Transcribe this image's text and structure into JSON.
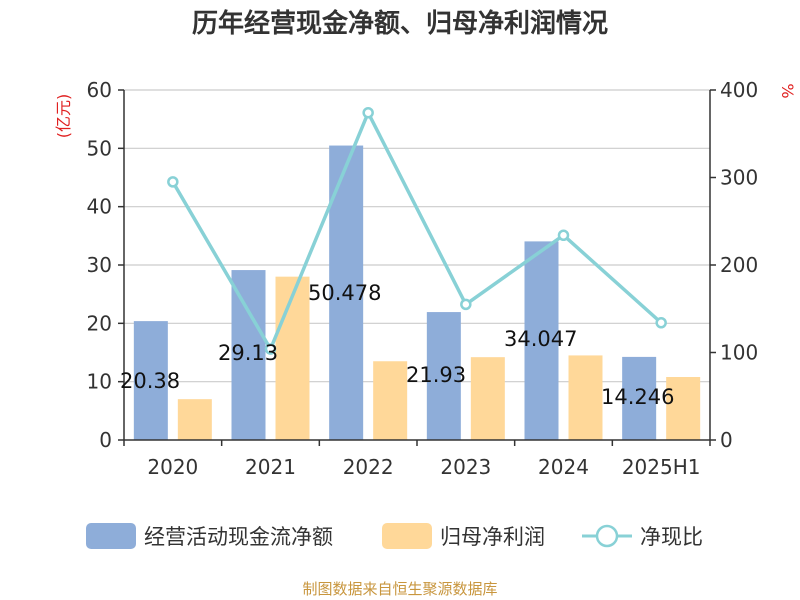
{
  "chart_data": {
    "type": "bar",
    "title": "历年经营现金净额、归母净利润情况",
    "categories": [
      "2020",
      "2021",
      "2022",
      "2023",
      "2024",
      "2025H1"
    ],
    "series": [
      {
        "name": "经营活动现金流净额",
        "kind": "bar",
        "axis": "left",
        "color": "#8eadd9",
        "values": [
          20.38,
          29.13,
          50.478,
          21.93,
          34.047,
          14.246
        ],
        "labels": [
          "20.38",
          "29.13",
          "50.478",
          "21.93",
          "34.047",
          "14.246"
        ]
      },
      {
        "name": "归母净利润",
        "kind": "bar",
        "axis": "left",
        "color": "#ffd899",
        "values": [
          7.0,
          28.0,
          13.5,
          14.2,
          14.5,
          10.8
        ]
      },
      {
        "name": "净现比",
        "kind": "line",
        "axis": "right",
        "color": "#88d1d6",
        "values": [
          295,
          104,
          374,
          155,
          234,
          134
        ]
      }
    ],
    "y_left": {
      "unit": "(亿元)",
      "min": 0,
      "max": 60,
      "ticks": [
        "0",
        "10",
        "20",
        "30",
        "40",
        "50",
        "60"
      ]
    },
    "y_right": {
      "unit": "%",
      "min": 0,
      "max": 400,
      "ticks": [
        "0",
        "100",
        "200",
        "300",
        "400"
      ]
    },
    "grid": true,
    "legend_position": "bottom"
  },
  "source": "制图数据来自恒生聚源数据库"
}
